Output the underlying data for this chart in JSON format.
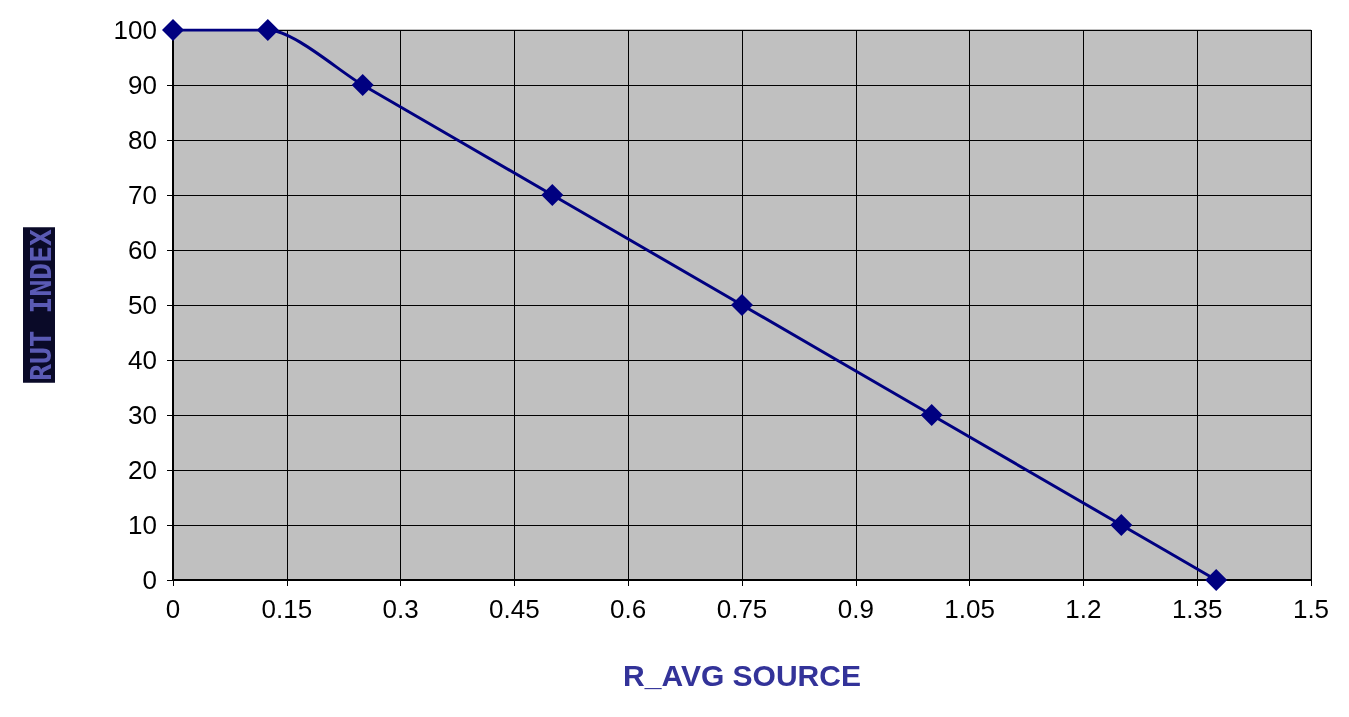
{
  "chart_data": {
    "type": "line",
    "xlabel": "R_AVG SOURCE",
    "ylabel": "RUT INDEX",
    "x": [
      0,
      0.125,
      0.25,
      0.5,
      0.75,
      1,
      1.25,
      1.375
    ],
    "series": [
      {
        "color": "#000080",
        "values": [
          100,
          100,
          90,
          70,
          50,
          30,
          10,
          0
        ]
      }
    ],
    "xlim": [
      0,
      1.5
    ],
    "xticks": [
      0,
      0.15,
      0.3,
      0.45,
      0.6,
      0.75,
      0.9,
      1.05,
      1.2,
      1.35,
      1.5
    ],
    "ylim": [
      0,
      100
    ],
    "yticks": [
      0,
      10,
      20,
      30,
      40,
      50,
      60,
      70,
      80,
      90,
      100
    ],
    "grid": true,
    "marker": "diamond",
    "line_style": "solid"
  }
}
